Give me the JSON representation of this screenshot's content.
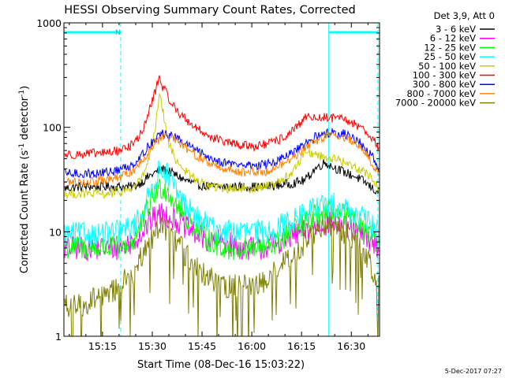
{
  "chart_data": {
    "type": "line",
    "title": "HESSI Observing Summary Count Rates, Corrected",
    "xlabel": "Start Time (08-Dec-16 15:03:22)",
    "ylabel": "Corrected Count Rate (s⁻¹ detector⁻¹)",
    "ylabel_plain": "Corrected Count Rate (s",
    "ylabel_sup1": "-1",
    "ylabel_mid": " detector",
    "ylabel_sup2": "-1",
    "ylabel_end": ")",
    "x_tick_labels": [
      "15:15",
      "15:30",
      "15:45",
      "16:00",
      "16:15",
      "16:30"
    ],
    "x_tick_minutes": [
      15,
      30,
      45,
      60,
      75,
      90
    ],
    "xlim_minutes_after_15h": [
      3.37,
      98.5
    ],
    "y_scale": "log",
    "ylim": [
      1,
      1000
    ],
    "y_tick_labels": [
      "1",
      "10",
      "100",
      "1000"
    ],
    "legend": {
      "placement": "top-right",
      "header": "Det 3,9, Att 0",
      "entries": [
        {
          "label": "3 - 6 keV",
          "color": "#000000"
        },
        {
          "label": "6 - 12 keV",
          "color": "#ff00ff"
        },
        {
          "label": "12 - 25 keV",
          "color": "#00ff00"
        },
        {
          "label": "25 - 50 keV",
          "color": "#00ffff"
        },
        {
          "label": "50 - 100 keV",
          "color": "#cccc00"
        },
        {
          "label": "100 - 300 keV",
          "color": "#ff0000"
        },
        {
          "label": "300 - 800 keV",
          "color": "#0000ff"
        },
        {
          "label": "800 - 7000 keV",
          "color": "#ff8000"
        },
        {
          "label": "7000 - 20000 keV",
          "color": "#808000"
        }
      ]
    },
    "annotations": {
      "night_marker": "N",
      "timestamp": "5-Dec-2017 07:27"
    },
    "events_minutes": {
      "night_1_end": 20.5,
      "day_2_start": 83.2,
      "day_2_end": 98.0
    },
    "series": [
      {
        "name": "3 - 6 keV",
        "color": "#000000",
        "x": [
          3.4,
          8,
          12,
          16,
          20,
          24,
          27,
          29,
          31,
          33,
          35,
          37,
          40,
          44,
          48,
          52,
          56,
          60,
          64,
          68,
          72,
          76,
          79,
          82,
          85,
          88,
          91,
          94,
          97,
          98.4
        ],
        "y": [
          26,
          27,
          27,
          27,
          27,
          27,
          30,
          34,
          37,
          40,
          38,
          35,
          31,
          28,
          27,
          27,
          27,
          27,
          27,
          28,
          29,
          31,
          40,
          46,
          41,
          37,
          34,
          30,
          25,
          24
        ]
      },
      {
        "name": "6 - 12 keV",
        "color": "#ff00ff",
        "x": [
          3.4,
          8,
          12,
          16,
          20,
          24,
          27,
          29,
          31,
          33,
          35,
          37,
          40,
          44,
          48,
          52,
          56,
          60,
          64,
          68,
          72,
          76,
          79,
          82,
          85,
          88,
          91,
          94,
          97,
          98.4
        ],
        "y": [
          7,
          7,
          7,
          7,
          7,
          8,
          10,
          12,
          14,
          15,
          14,
          13,
          11,
          9,
          8,
          8,
          7,
          7,
          7,
          8,
          9,
          10,
          11,
          12,
          12,
          11,
          10,
          9,
          8,
          7
        ]
      },
      {
        "name": "12 - 25 keV",
        "color": "#00ff00",
        "x": [
          3.4,
          8,
          12,
          16,
          20,
          24,
          27,
          29,
          31,
          33,
          35,
          37,
          40,
          44,
          48,
          52,
          56,
          60,
          64,
          68,
          72,
          76,
          79,
          82,
          85,
          88,
          91,
          94,
          97,
          98.4
        ],
        "y": [
          7,
          7,
          7,
          7,
          7,
          8,
          12,
          18,
          24,
          27,
          24,
          19,
          14,
          10,
          8,
          7,
          7,
          7,
          7,
          8,
          10,
          12,
          14,
          15,
          15,
          14,
          12,
          10,
          8,
          7.5
        ]
      },
      {
        "name": "25 - 50 keV",
        "color": "#00ffff",
        "x": [
          3.4,
          8,
          12,
          16,
          20,
          24,
          27,
          29,
          31,
          33,
          35,
          37,
          40,
          44,
          48,
          52,
          56,
          60,
          64,
          68,
          72,
          76,
          79,
          82,
          85,
          88,
          91,
          94,
          97,
          98.4
        ],
        "y": [
          9.5,
          9.5,
          9.5,
          9.5,
          10,
          11,
          15,
          22,
          32,
          42,
          33,
          25,
          18,
          13,
          11,
          10,
          10,
          10,
          10,
          11,
          13,
          15,
          17,
          18,
          18,
          17,
          15,
          13,
          11,
          10
        ]
      },
      {
        "name": "50 - 100 keV",
        "color": "#cccc00",
        "x": [
          3.4,
          8,
          12,
          16,
          20,
          24,
          27,
          29,
          31,
          32,
          33,
          34,
          35,
          37,
          40,
          44,
          48,
          52,
          56,
          60,
          64,
          68,
          72,
          74,
          76,
          79,
          82,
          85,
          88,
          91,
          94,
          97,
          98.4
        ],
        "y": [
          23,
          23,
          23,
          23,
          24,
          26,
          33,
          50,
          95,
          200,
          160,
          100,
          70,
          50,
          38,
          30,
          27,
          26,
          26,
          26,
          27,
          30,
          36,
          45,
          60,
          55,
          52,
          50,
          46,
          42,
          38,
          30,
          26
        ]
      },
      {
        "name": "100 - 300 keV",
        "color": "#ff0000",
        "x": [
          3.4,
          8,
          12,
          16,
          20,
          24,
          27,
          29,
          31,
          32,
          33,
          35,
          37,
          40,
          44,
          48,
          52,
          56,
          60,
          64,
          68,
          72,
          75,
          77,
          79,
          82,
          85,
          88,
          91,
          94,
          97,
          98.4
        ],
        "y": [
          55,
          55,
          56,
          57,
          60,
          68,
          90,
          140,
          230,
          300,
          250,
          190,
          150,
          120,
          95,
          80,
          72,
          68,
          66,
          68,
          75,
          90,
          110,
          135,
          120,
          125,
          122,
          118,
          108,
          95,
          75,
          60
        ]
      },
      {
        "name": "300 - 800 keV",
        "color": "#0000ff",
        "x": [
          3.4,
          8,
          12,
          16,
          20,
          24,
          27,
          29,
          31,
          33,
          35,
          37,
          40,
          44,
          48,
          52,
          56,
          60,
          64,
          68,
          72,
          76,
          79,
          82,
          85,
          88,
          91,
          94,
          97,
          98.4
        ],
        "y": [
          36,
          36,
          36,
          37,
          39,
          44,
          55,
          67,
          78,
          86,
          85,
          80,
          70,
          58,
          50,
          46,
          44,
          43,
          44,
          48,
          56,
          68,
          80,
          88,
          90,
          86,
          78,
          65,
          48,
          40
        ]
      },
      {
        "name": "800 - 7000 keV",
        "color": "#ff8000",
        "x": [
          3.4,
          8,
          12,
          16,
          20,
          24,
          27,
          29,
          31,
          33,
          35,
          37,
          40,
          44,
          48,
          52,
          56,
          60,
          64,
          68,
          72,
          76,
          79,
          82,
          85,
          88,
          91,
          94,
          97,
          98.4
        ],
        "y": [
          30,
          30,
          30,
          31,
          33,
          38,
          48,
          60,
          72,
          80,
          80,
          75,
          64,
          52,
          44,
          40,
          38,
          37,
          38,
          42,
          50,
          62,
          74,
          82,
          84,
          80,
          72,
          58,
          42,
          34
        ]
      },
      {
        "name": "7000 - 20000 keV",
        "color": "#808000",
        "x": [
          3.4,
          8,
          12,
          16,
          20,
          24,
          27,
          29,
          31,
          33,
          35,
          37,
          40,
          44,
          48,
          52,
          56,
          60,
          64,
          68,
          72,
          76,
          79,
          82,
          85,
          88,
          91,
          94,
          97,
          98.4
        ],
        "y": [
          2,
          2,
          2.2,
          2.5,
          3,
          4,
          6,
          8,
          10,
          11,
          10,
          8.5,
          6,
          4.5,
          3.5,
          3,
          3,
          3,
          3.5,
          4.5,
          6,
          8,
          10,
          11,
          11,
          10,
          8.5,
          6,
          4,
          3.5
        ]
      }
    ]
  }
}
